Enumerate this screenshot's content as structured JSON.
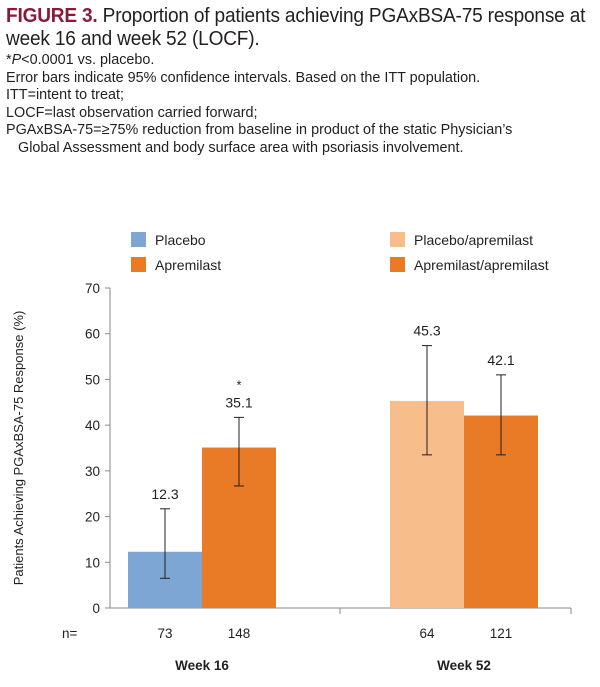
{
  "figure": {
    "label": "FIGURE 3.",
    "title_line1": " Proportion of patients achieving PGAxBSA-75 response at",
    "title_line2": "week 16 and week 52 (LOCF).",
    "notes": {
      "pvalue_prefix": "*",
      "pvalue_italic": "P",
      "pvalue_rest": "<0.0001 vs. placebo.",
      "line2": "Error bars indicate 95% confidence intervals. Based on the ITT population.",
      "line3": "ITT=intent to treat;",
      "line4": "LOCF=last observation carried forward;",
      "line5": "PGAxBSA-75=≥75% reduction from baseline in product of the static Physician’s",
      "line6": "Global Assessment and body surface area with psoriasis involvement."
    }
  },
  "chart_data": {
    "type": "bar",
    "title": "Proportion of patients achieving PGAxBSA-75 response at week 16 and week 52 (LOCF)",
    "xlabel": "",
    "ylabel": "Patients Achieving PGAxBSA-75 Response (%)",
    "ylim": [
      0,
      70
    ],
    "yticks": [
      0,
      10,
      20,
      30,
      40,
      50,
      60,
      70
    ],
    "grid": false,
    "legend_position": "top",
    "categories": [
      "Week 16",
      "Week 52"
    ],
    "n_label": "n=",
    "series": [
      {
        "name": "Placebo",
        "color": "#7ea6d4",
        "group": "Week 16",
        "value": 12.3,
        "label": "12.3",
        "ci": [
          6.5,
          21.7
        ],
        "n": "73",
        "significant": false
      },
      {
        "name": "Apremilast",
        "color": "#ea7b26",
        "group": "Week 16",
        "value": 35.1,
        "label": "35.1",
        "ci": [
          26.7,
          41.7
        ],
        "n": "148",
        "significant": true
      },
      {
        "name": "Placebo/apremilast",
        "color": "#f7bd8a",
        "group": "Week 52",
        "value": 45.3,
        "label": "45.3",
        "ci": [
          33.5,
          57.4
        ],
        "n": "64",
        "significant": false
      },
      {
        "name": "Apremilast/apremilast",
        "color": "#ea7b26",
        "group": "Week 52",
        "value": 42.1,
        "label": "42.1",
        "ci": [
          33.5,
          51.0
        ],
        "n": "121",
        "significant": false
      }
    ],
    "significance_marker": "*"
  }
}
